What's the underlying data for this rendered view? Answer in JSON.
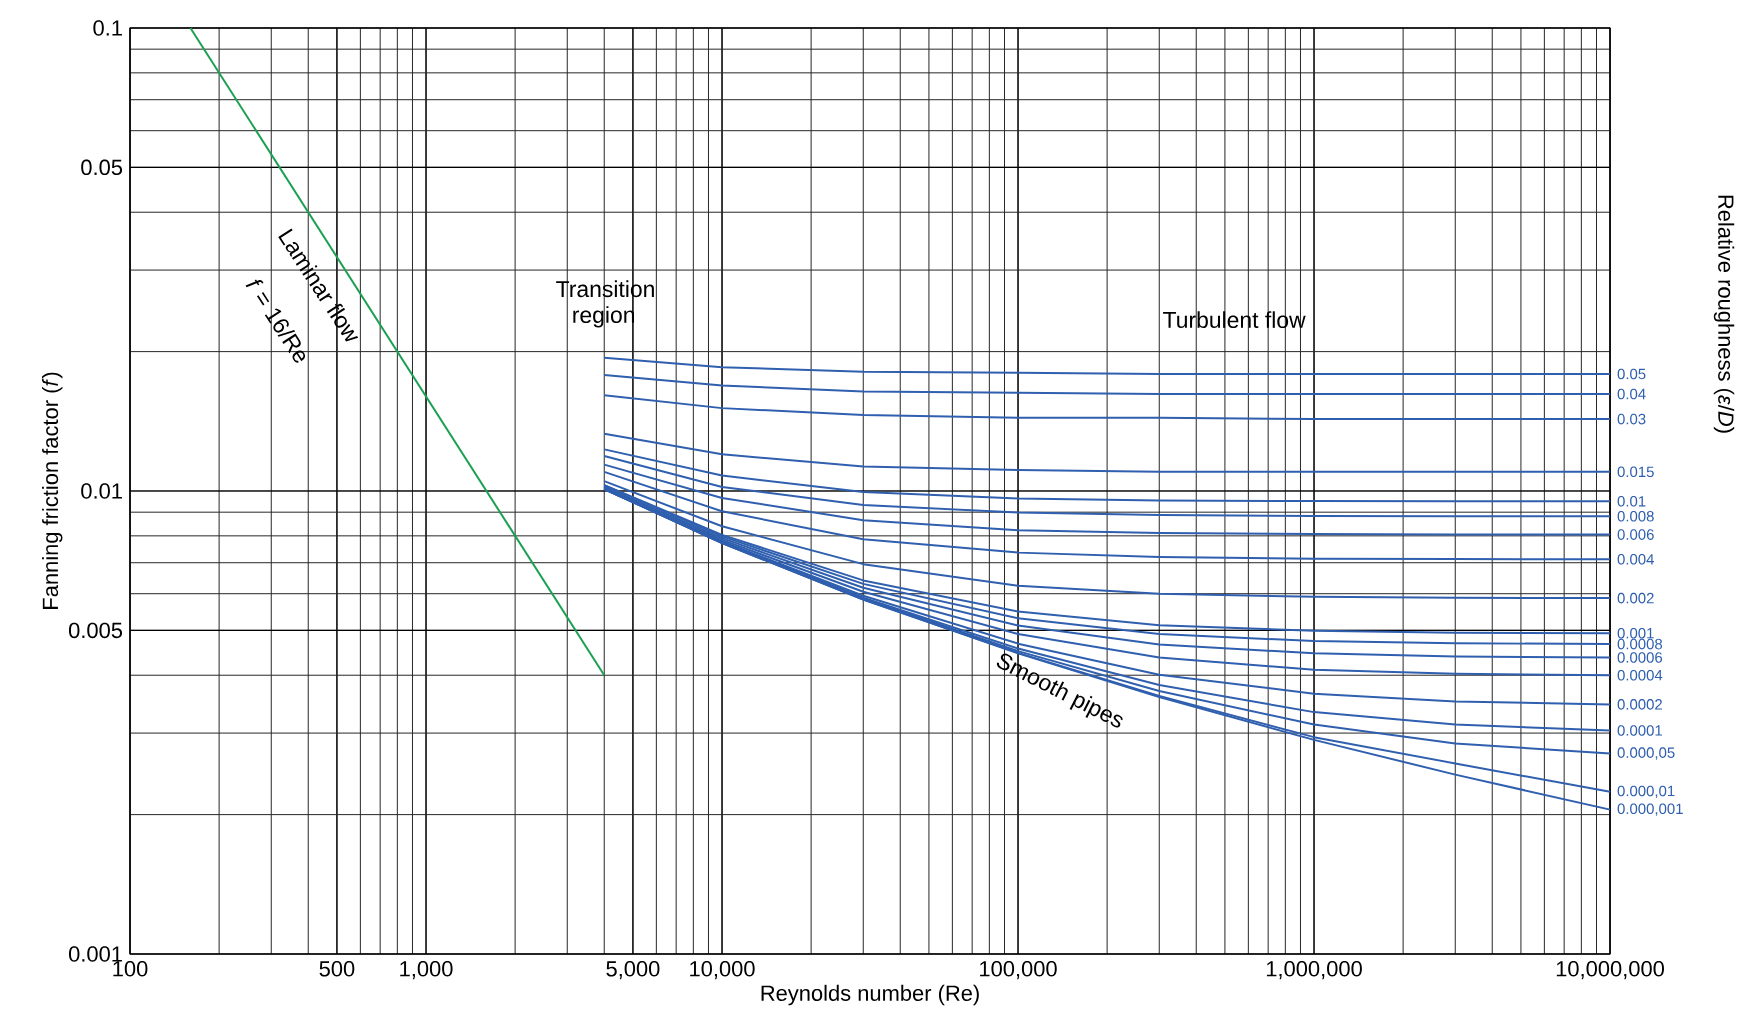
{
  "chart_data": {
    "type": "line",
    "xlabel": "Reynolds number (Re)",
    "ylabel": "Fanning friction factor (*f*)",
    "legend_title": "Relative roughness (*ε*/*D*)",
    "log": "xy",
    "grid": true,
    "xlim": [
      100,
      10000000
    ],
    "ylim": [
      0.001,
      0.1
    ],
    "xticks": [
      100,
      500,
      {
        "value": 1000,
        "label": "1,000"
      },
      {
        "value": 5000,
        "label": "5,000"
      },
      {
        "value": 10000,
        "label": "10,000"
      },
      {
        "value": 100000,
        "label": "100,000"
      },
      {
        "value": 1000000,
        "label": "1,000,000"
      },
      {
        "value": 10000000,
        "label": "10,000,000"
      }
    ],
    "yticks": [
      0.001,
      0.005,
      0.01,
      0.05,
      0.1
    ],
    "x": [
      4000,
      10000,
      30000,
      100000,
      300000,
      1000000,
      3000000,
      10000000
    ],
    "series": [
      {
        "x": [
          160,
          4000
        ],
        "color": "#1aa050",
        "values": [
          0.1,
          0.004
        ]
      },
      {
        "name": "0.05",
        "color": "#2f5fae",
        "values": [
          0.0194,
          0.0185,
          0.0181,
          0.018,
          0.0179,
          0.0179,
          0.0179,
          0.0179
        ]
      },
      {
        "name": "0.04",
        "color": "#2f5fae",
        "values": [
          0.0178,
          0.0169,
          0.0164,
          0.0163,
          0.0162,
          0.0162,
          0.0162,
          0.0162
        ]
      },
      {
        "name": "0.03",
        "color": "#2f5fae",
        "values": [
          0.0161,
          0.0151,
          0.0146,
          0.0144,
          0.0144,
          0.0143,
          0.0143,
          0.0143
        ]
      },
      {
        "name": "0.015",
        "color": "#2f5fae",
        "values": [
          0.0133,
          0.012,
          0.0113,
          0.0111,
          0.011,
          0.011,
          0.011,
          0.011
        ]
      },
      {
        "name": "0.01",
        "color": "#2f5fae",
        "values": [
          0.0123,
          0.0108,
          0.00995,
          0.00963,
          0.00954,
          0.00951,
          0.0095,
          0.0095
        ]
      },
      {
        "name": "0.008",
        "color": "#2f5fae",
        "values": [
          0.0119,
          0.0102,
          0.00933,
          0.00898,
          0.00887,
          0.00883,
          0.00882,
          0.00882
        ]
      },
      {
        "name": "0.006",
        "color": "#2f5fae",
        "values": [
          0.0114,
          0.00966,
          0.00865,
          0.00823,
          0.00811,
          0.00807,
          0.00805,
          0.00805
        ]
      },
      {
        "name": "0.004",
        "color": "#2f5fae",
        "values": [
          0.011,
          0.00904,
          0.00787,
          0.00736,
          0.0072,
          0.00714,
          0.00713,
          0.00712
        ]
      },
      {
        "name": "0.002",
        "color": "#2f5fae",
        "values": [
          0.0105,
          0.00839,
          0.00695,
          0.00624,
          0.006,
          0.00591,
          0.00588,
          0.00587
        ]
      },
      {
        "name": "0.001",
        "color": "#2f5fae",
        "values": [
          0.0103,
          0.00804,
          0.00641,
          0.00549,
          0.00513,
          0.00499,
          0.00494,
          0.00493
        ]
      },
      {
        "name": "0.0008",
        "color": "#2f5fae",
        "values": [
          0.0103,
          0.00798,
          0.0063,
          0.00531,
          0.00491,
          0.00474,
          0.00469,
          0.00467
        ]
      },
      {
        "name": "0.0006",
        "color": "#2f5fae",
        "values": [
          0.0102,
          0.00791,
          0.00618,
          0.00512,
          0.00466,
          0.00446,
          0.00439,
          0.00437
        ]
      },
      {
        "name": "0.0004",
        "color": "#2f5fae",
        "values": [
          0.0102,
          0.00784,
          0.00606,
          0.00491,
          0.00437,
          0.00411,
          0.00403,
          0.004
        ]
      },
      {
        "name": "0.0002",
        "color": "#2f5fae",
        "values": [
          0.0101,
          0.00778,
          0.00594,
          0.00468,
          0.00401,
          0.00365,
          0.00351,
          0.00346
        ]
      },
      {
        "name": "0.0001",
        "color": "#2f5fae",
        "values": [
          0.0101,
          0.00775,
          0.00588,
          0.00457,
          0.00381,
          0.00333,
          0.00313,
          0.00304
        ]
      },
      {
        "name": "0.000,05",
        "color": "#2f5fae",
        "values": [
          0.0101,
          0.00773,
          0.00585,
          0.00451,
          0.0037,
          0.00313,
          0.00285,
          0.00271
        ]
      },
      {
        "name": "0.000,01",
        "color": "#2f5fae",
        "values": [
          0.0101,
          0.00772,
          0.00583,
          0.00447,
          0.00361,
          0.00294,
          0.00258,
          0.00224
        ]
      },
      {
        "name": "0.000,001",
        "color": "#2f5fae",
        "values": [
          0.0101,
          0.00772,
          0.00583,
          0.00446,
          0.00359,
          0.0029,
          0.00244,
          0.00205
        ]
      }
    ],
    "annotations": [
      "Laminar flow",
      "*f* = 16/Re",
      "Transition region",
      "Turbulent flow",
      "Smooth pipes"
    ]
  }
}
